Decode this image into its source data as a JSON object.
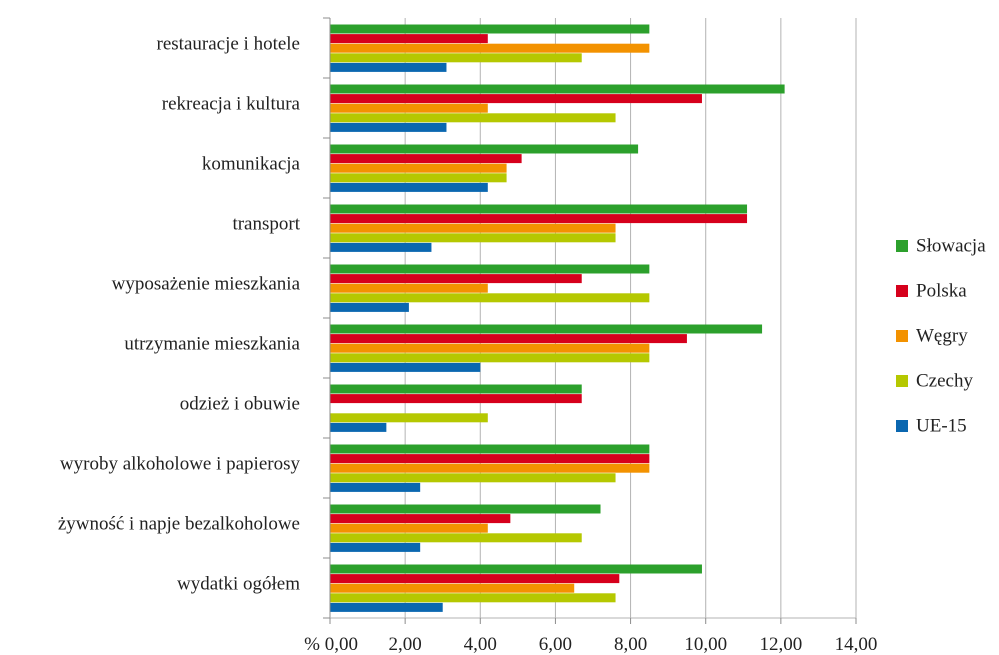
{
  "chart_data": {
    "type": "bar",
    "orientation": "horizontal",
    "title": "",
    "xlabel": "",
    "ylabel": "",
    "xlim": [
      0,
      14
    ],
    "x_ticks": [
      0,
      2,
      4,
      6,
      8,
      10,
      12,
      14
    ],
    "x_tick_labels": [
      "% 0,00",
      "2,00",
      "4,00",
      "6,00",
      "8,00",
      "10,00",
      "12,00",
      "14,00"
    ],
    "grid": "vertical",
    "legend_position": "right",
    "categories": [
      "restauracje i hotele",
      "rekreacja i kultura",
      "komunikacja",
      "transport",
      "wyposażenie mieszkania",
      "utrzymanie mieszkania",
      "odzież i obuwie",
      "wyroby alkoholowe i papierosy",
      "żywność i napje bezalkoholowe",
      "wydatki ogółem"
    ],
    "series": [
      {
        "name": "Słowacja",
        "color": "#2ca02c",
        "values": [
          8.5,
          12.1,
          8.2,
          11.1,
          8.5,
          11.5,
          6.7,
          8.5,
          7.2,
          9.9
        ]
      },
      {
        "name": "Polska",
        "color": "#d6001c",
        "values": [
          4.2,
          9.9,
          5.1,
          11.1,
          6.7,
          9.5,
          6.7,
          8.5,
          4.8,
          7.7
        ]
      },
      {
        "name": "Węgry",
        "color": "#f39200",
        "values": [
          8.5,
          4.2,
          4.7,
          7.6,
          4.2,
          8.5,
          0,
          8.5,
          4.2,
          6.5
        ]
      },
      {
        "name": "Czechy",
        "color": "#b5c800",
        "values": [
          6.7,
          7.6,
          4.7,
          7.6,
          8.5,
          8.5,
          4.2,
          7.6,
          6.7,
          7.6
        ]
      },
      {
        "name": "UE-15",
        "color": "#0a67b0",
        "values": [
          3.1,
          3.1,
          4.2,
          2.7,
          2.1,
          4.0,
          1.5,
          2.4,
          2.4,
          3.0
        ]
      }
    ]
  }
}
